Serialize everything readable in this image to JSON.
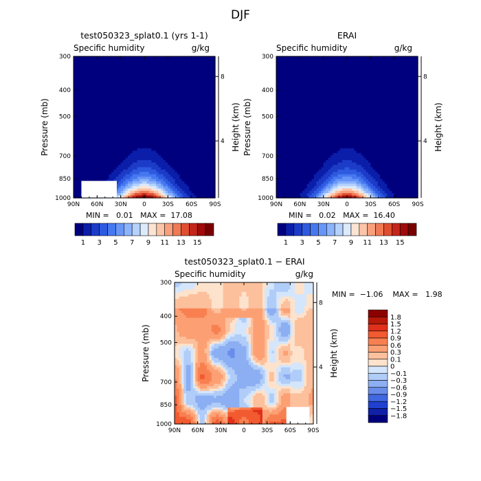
{
  "title": "DJF",
  "chart_data": [
    {
      "type": "heatmap",
      "title": "test050323_splat0.1 (yrs 1-1)",
      "subtitle_left": "Specific humidity",
      "subtitle_right": "g/kg",
      "ylabel": "Pressure (mb)",
      "ylabel_right": "Height (km)",
      "x_ticks": [
        "90N",
        "60N",
        "30N",
        "0",
        "30S",
        "60S",
        "90S"
      ],
      "x_range": [
        90,
        -90
      ],
      "y_ticks": [
        "300",
        "400",
        "500",
        "700",
        "850",
        "1000"
      ],
      "y_tick_values": [
        300,
        400,
        500,
        700,
        850,
        1000
      ],
      "y_range": [
        1000,
        300
      ],
      "y_right_ticks": [
        "8",
        "4"
      ],
      "stats": {
        "min": "0.01",
        "max": "17.08"
      },
      "stats_text": "MIN =   0.01   MAX =  17.08",
      "field": {
        "peak": 17.08,
        "peak_lat": 0,
        "width_surface_deg": 38,
        "scale_height": 0.12,
        "missing_patch_lon": [
          35,
          80
        ]
      }
    },
    {
      "type": "heatmap",
      "title": "ERAI",
      "subtitle_left": "Specific humidity",
      "subtitle_right": "g/kg",
      "ylabel": "Pressure (mb)",
      "ylabel_right": "Height (km)",
      "x_ticks": [
        "90N",
        "60N",
        "30N",
        "0",
        "30S",
        "60S",
        "90S"
      ],
      "x_range": [
        90,
        -90
      ],
      "y_ticks": [
        "300",
        "400",
        "500",
        "700",
        "850",
        "1000"
      ],
      "y_tick_values": [
        300,
        400,
        500,
        700,
        850,
        1000
      ],
      "y_range": [
        1000,
        300
      ],
      "y_right_ticks": [
        "8",
        "4"
      ],
      "stats": {
        "min": "0.02",
        "max": "16.40"
      },
      "stats_text": "MIN =   0.02   MAX =  16.40",
      "field": {
        "peak": 16.4,
        "peak_lat": 0,
        "width_surface_deg": 36,
        "scale_height": 0.12
      }
    },
    {
      "type": "heatmap",
      "title": "test050323_splat0.1 − ERAI",
      "subtitle_left": "Specific humidity",
      "subtitle_right": "g/kg",
      "ylabel": "Pressure (mb)",
      "ylabel_right": "Height (km)",
      "x_ticks": [
        "90N",
        "60N",
        "30N",
        "0",
        "30S",
        "60S",
        "90S"
      ],
      "x_range": [
        90,
        -90
      ],
      "y_ticks": [
        "300",
        "400",
        "500",
        "700",
        "850",
        "1000"
      ],
      "y_tick_values": [
        300,
        400,
        500,
        700,
        850,
        1000
      ],
      "y_range": [
        1000,
        300
      ],
      "y_right_ticks": [
        "8",
        "4"
      ],
      "stats": {
        "min": "-1.06",
        "max": "1.98"
      },
      "stats_text": "MIN =  −1.06    MAX =   1.98",
      "field": {
        "missing_patch_lon": [
          -55,
          -85
        ]
      }
    }
  ],
  "colorbar_abs": {
    "labels": [
      "1",
      "3",
      "5",
      "7",
      "9",
      "11",
      "13",
      "15"
    ],
    "colors": [
      "#00007f",
      "#0a1eaa",
      "#1c3cc8",
      "#2e5ae0",
      "#4678f0",
      "#6896f8",
      "#8cb4fc",
      "#b4d2fc",
      "#dceafc",
      "#fce4d2",
      "#fcc4a8",
      "#f8a07e",
      "#f07a56",
      "#e04e30",
      "#c4261a",
      "#a00a0a",
      "#7a0000"
    ]
  },
  "colorbar_diff": {
    "labels": [
      "1.8",
      "1.5",
      "1.2",
      "0.9",
      "0.6",
      "0.3",
      "0.1",
      "0",
      "−0.1",
      "−0.3",
      "−0.6",
      "−0.9",
      "−1.2",
      "−1.5",
      "−1.8"
    ],
    "colors": [
      "#8c0000",
      "#b81808",
      "#e0301a",
      "#f25a30",
      "#f88050",
      "#fca074",
      "#fcc09c",
      "#fde2cc",
      "#d4e6fc",
      "#b0ccf8",
      "#8caef2",
      "#6a8cea",
      "#4068e0",
      "#2040d0",
      "#1020a8",
      "#00007c"
    ]
  }
}
